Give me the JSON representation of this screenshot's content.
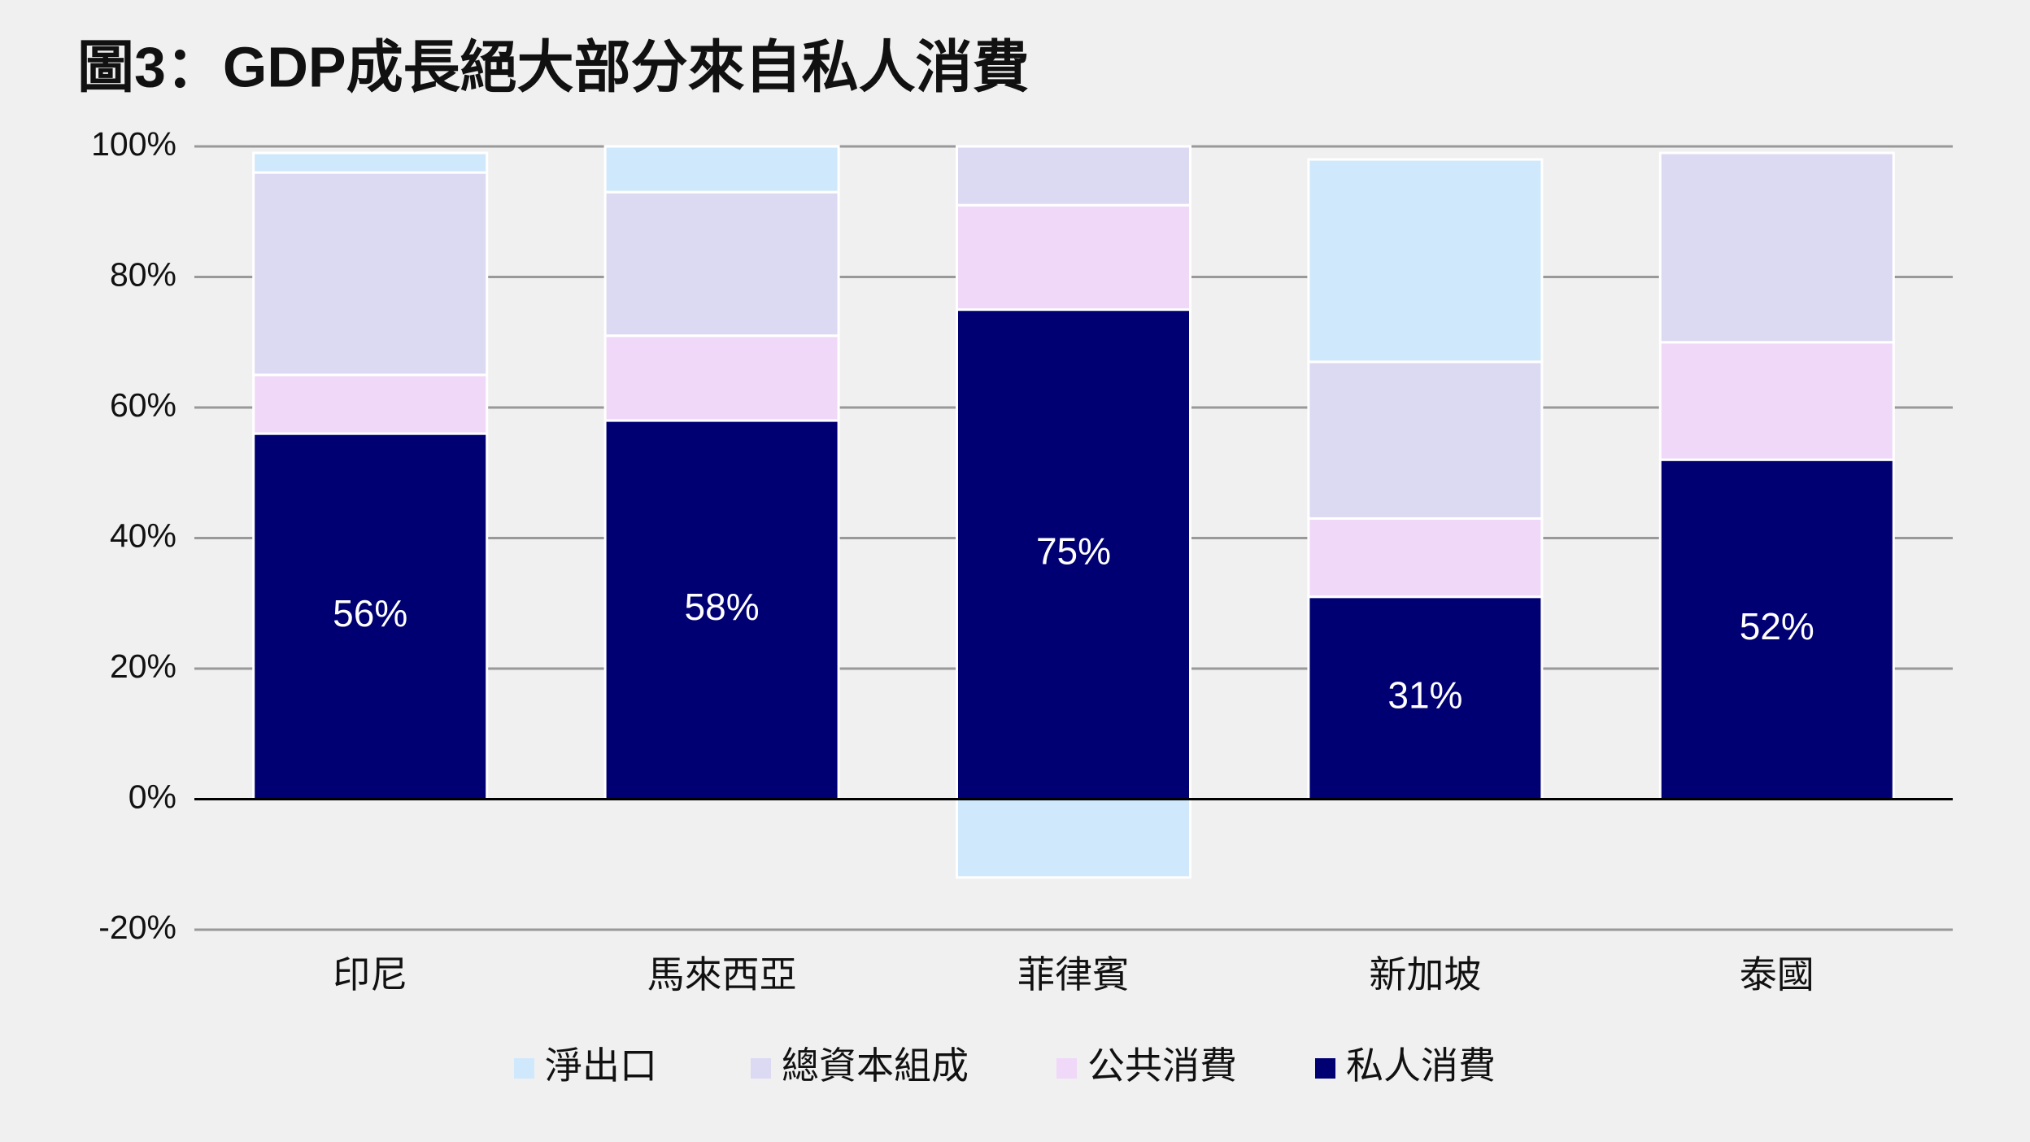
{
  "chart_data": {
    "type": "stacked_bar",
    "title": "圖3：GDP成長絕大部分來自私人消費",
    "categories": [
      "印尼",
      "馬來西亞",
      "菲律賓",
      "新加坡",
      "泰國"
    ],
    "series": [
      {
        "name": "淨出口",
        "color": "#cfe8fb",
        "values": [
          3,
          7,
          -12,
          31,
          0
        ]
      },
      {
        "name": "總資本組成",
        "color": "#dcd9f3",
        "values": [
          31,
          22,
          9,
          24,
          29
        ]
      },
      {
        "name": "公共消費",
        "color": "#f0d8f8",
        "values": [
          9,
          13,
          16,
          12,
          18
        ]
      },
      {
        "name": "私人消費",
        "color": "#000073",
        "values": [
          56,
          58,
          75,
          31,
          52
        ],
        "value_labels": [
          "56%",
          "58%",
          "75%",
          "31%",
          "52%"
        ]
      }
    ],
    "ylim": [
      -20,
      100
    ],
    "yticks": [
      {
        "value": -20,
        "label": "-20%"
      },
      {
        "value": 0,
        "label": "0%"
      },
      {
        "value": 20,
        "label": "20%"
      },
      {
        "value": 40,
        "label": "40%"
      },
      {
        "value": 60,
        "label": "60%"
      },
      {
        "value": 80,
        "label": "80%"
      },
      {
        "value": 100,
        "label": "100%"
      }
    ],
    "grid": true,
    "legend": "bottom"
  }
}
